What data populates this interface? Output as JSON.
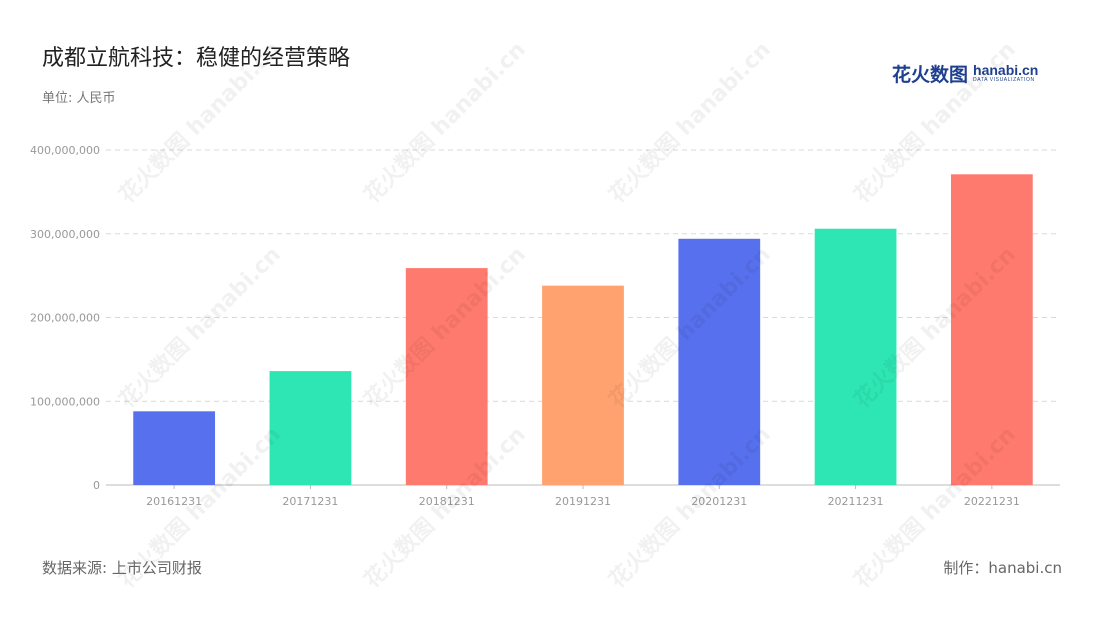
{
  "header": {
    "title": "成都立航科技：稳健的经营策略",
    "subtitle": "单位: 人民币"
  },
  "logo": {
    "cn_text": "花火数图",
    "en_text": "hanabi.cn",
    "en_sub": "DATA VISUALIZATION",
    "color": "#1f3f8f"
  },
  "footer": {
    "source": "数据来源: 上市公司财报",
    "credit": "制作：hanabi.cn"
  },
  "watermark_text": "花火数图 hanabi.cn",
  "chart_data": {
    "type": "bar",
    "categories": [
      "20161231",
      "20171231",
      "20181231",
      "20191231",
      "20201231",
      "20211231",
      "20221231"
    ],
    "values": [
      88000000,
      136000000,
      259000000,
      238000000,
      294000000,
      306000000,
      371000000
    ],
    "colors": [
      "#5770ee",
      "#2ee6b3",
      "#ff7a6e",
      "#ffa26f",
      "#5770ee",
      "#2ee6b3",
      "#ff7a6e"
    ],
    "ylim": [
      0,
      400000000
    ],
    "yticks": [
      0,
      100000000,
      200000000,
      300000000,
      400000000
    ],
    "ytick_labels": [
      "0",
      "100,000,000",
      "200,000,000",
      "300,000,000",
      "400,000,000"
    ],
    "grid": true,
    "grid_style": "dashed",
    "legend": false
  }
}
